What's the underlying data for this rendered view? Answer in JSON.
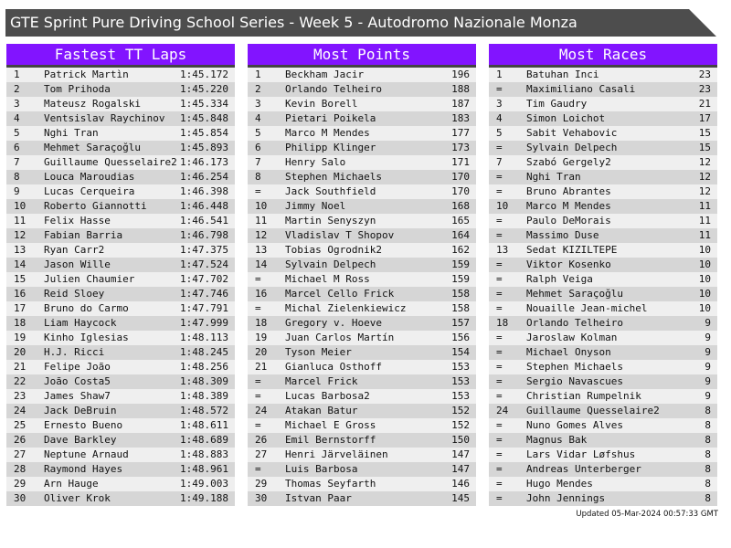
{
  "title": "GTE Sprint Pure Driving School Series - Week 5 - Autodromo Nazionale Monza",
  "colors": {
    "header": "#8214ff",
    "title_bar": "#4d4d4d",
    "row_light": "#efefef",
    "row_dark": "#d6d6d6"
  },
  "tables": [
    {
      "heading": "Fastest TT Laps",
      "rows": [
        [
          "1",
          "Patrick Martìn",
          "1:45.172"
        ],
        [
          "2",
          "Tom Prihoda",
          "1:45.220"
        ],
        [
          "3",
          "Mateusz Rogalski",
          "1:45.334"
        ],
        [
          "4",
          "Ventsislav Raychinov",
          "1:45.848"
        ],
        [
          "5",
          "Nghi Tran",
          "1:45.854"
        ],
        [
          "6",
          "Mehmet Saraçoğlu",
          "1:45.893"
        ],
        [
          "7",
          "Guillaume Quesselaire2",
          "1:46.173"
        ],
        [
          "8",
          "Louca Maroudias",
          "1:46.254"
        ],
        [
          "9",
          "Lucas Cerqueira",
          "1:46.398"
        ],
        [
          "10",
          "Roberto Giannotti",
          "1:46.448"
        ],
        [
          "11",
          "Felix Hasse",
          "1:46.541"
        ],
        [
          "12",
          "Fabian Barria",
          "1:46.798"
        ],
        [
          "13",
          "Ryan Carr2",
          "1:47.375"
        ],
        [
          "14",
          "Jason Wille",
          "1:47.524"
        ],
        [
          "15",
          "Julien Chaumier",
          "1:47.702"
        ],
        [
          "16",
          "Reid Sloey",
          "1:47.746"
        ],
        [
          "17",
          "Bruno do Carmo",
          "1:47.791"
        ],
        [
          "18",
          "Liam Haycock",
          "1:47.999"
        ],
        [
          "19",
          "Kinho Iglesias",
          "1:48.113"
        ],
        [
          "20",
          "H.J. Ricci",
          "1:48.245"
        ],
        [
          "21",
          "Felipe João",
          "1:48.256"
        ],
        [
          "22",
          "João Costa5",
          "1:48.309"
        ],
        [
          "23",
          "James Shaw7",
          "1:48.389"
        ],
        [
          "24",
          "Jack DeBruin",
          "1:48.572"
        ],
        [
          "25",
          "Ernesto Bueno",
          "1:48.611"
        ],
        [
          "26",
          "Dave Barkley",
          "1:48.689"
        ],
        [
          "27",
          "Neptune Arnaud",
          "1:48.883"
        ],
        [
          "28",
          "Raymond Hayes",
          "1:48.961"
        ],
        [
          "29",
          "Arn Hauge",
          "1:49.003"
        ],
        [
          "30",
          "Oliver Krok",
          "1:49.188"
        ]
      ]
    },
    {
      "heading": "Most Points",
      "rows": [
        [
          "1",
          "Beckham Jacir",
          "196"
        ],
        [
          "2",
          "Orlando Telheiro",
          "188"
        ],
        [
          "3",
          "Kevin Borell",
          "187"
        ],
        [
          "4",
          "Pietari Poikela",
          "183"
        ],
        [
          "5",
          "Marco M Mendes",
          "177"
        ],
        [
          "6",
          "Philipp Klinger",
          "173"
        ],
        [
          "7",
          "Henry Salo",
          "171"
        ],
        [
          "8",
          "Stephen Michaels",
          "170"
        ],
        [
          "=",
          "Jack Southfield",
          "170"
        ],
        [
          "10",
          "Jimmy Noel",
          "168"
        ],
        [
          "11",
          "Martin Senyszyn",
          "165"
        ],
        [
          "12",
          "Vladislav T Shopov",
          "164"
        ],
        [
          "13",
          "Tobias Ogrodnik2",
          "162"
        ],
        [
          "14",
          "Sylvain Delpech",
          "159"
        ],
        [
          "=",
          "Michael M Ross",
          "159"
        ],
        [
          "16",
          "Marcel Cello Frick",
          "158"
        ],
        [
          "=",
          "Michal Zielenkiewicz",
          "158"
        ],
        [
          "18",
          "Gregory v. Hoeve",
          "157"
        ],
        [
          "19",
          "Juan Carlos Martín",
          "156"
        ],
        [
          "20",
          "Tyson Meier",
          "154"
        ],
        [
          "21",
          "Gianluca Osthoff",
          "153"
        ],
        [
          "=",
          "Marcel Frick",
          "153"
        ],
        [
          "=",
          "Lucas Barbosa2",
          "153"
        ],
        [
          "24",
          "Atakan Batur",
          "152"
        ],
        [
          "=",
          "Michael E Gross",
          "152"
        ],
        [
          "26",
          "Emil Bernstorff",
          "150"
        ],
        [
          "27",
          "Henri Järveläinen",
          "147"
        ],
        [
          "=",
          "Luis Barbosa",
          "147"
        ],
        [
          "29",
          "Thomas Seyfarth",
          "146"
        ],
        [
          "30",
          "Istvan Paar",
          "145"
        ]
      ]
    },
    {
      "heading": "Most Races",
      "rows": [
        [
          "1",
          "Batuhan Inci",
          "23"
        ],
        [
          "=",
          "Maximiliano Casali",
          "23"
        ],
        [
          "3",
          "Tim Gaudry",
          "21"
        ],
        [
          "4",
          "Simon Loichot",
          "17"
        ],
        [
          "5",
          "Sabit Vehabovic",
          "15"
        ],
        [
          "=",
          "Sylvain Delpech",
          "15"
        ],
        [
          "7",
          "Szabó Gergely2",
          "12"
        ],
        [
          "=",
          "Nghi Tran",
          "12"
        ],
        [
          "=",
          "Bruno Abrantes",
          "12"
        ],
        [
          "10",
          "Marco M Mendes",
          "11"
        ],
        [
          "=",
          "Paulo DeMorais",
          "11"
        ],
        [
          "=",
          "Massimo Duse",
          "11"
        ],
        [
          "13",
          "Sedat KIZILTEPE",
          "10"
        ],
        [
          "=",
          "Viktor Kosenko",
          "10"
        ],
        [
          "=",
          "Ralph Veiga",
          "10"
        ],
        [
          "=",
          "Mehmet Saraçoğlu",
          "10"
        ],
        [
          "=",
          "Nouaille Jean-michel",
          "10"
        ],
        [
          "18",
          "Orlando Telheiro",
          "9"
        ],
        [
          "=",
          "Jaroslaw Kolman",
          "9"
        ],
        [
          "=",
          "Michael Onyson",
          "9"
        ],
        [
          "=",
          "Stephen Michaels",
          "9"
        ],
        [
          "=",
          "Sergio Navascues",
          "9"
        ],
        [
          "=",
          "Christian Rumpelnik",
          "9"
        ],
        [
          "24",
          "Guillaume Quesselaire2",
          "8"
        ],
        [
          "=",
          "Nuno Gomes Alves",
          "8"
        ],
        [
          "=",
          "Magnus Bak",
          "8"
        ],
        [
          "=",
          "Lars Vidar Løfshus",
          "8"
        ],
        [
          "=",
          "Andreas Unterberger",
          "8"
        ],
        [
          "=",
          "Hugo Mendes",
          "8"
        ],
        [
          "=",
          "John Jennings",
          "8"
        ]
      ]
    }
  ],
  "updated": "Updated 05-Mar-2024 00:57:33 GMT"
}
